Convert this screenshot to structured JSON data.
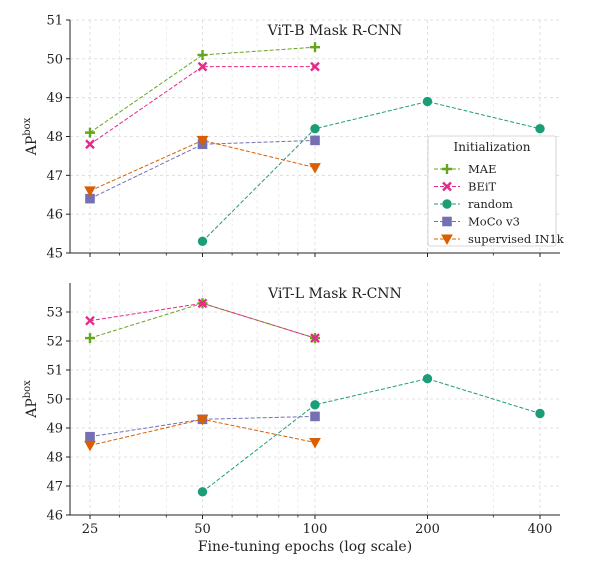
{
  "chart_data": [
    {
      "type": "line",
      "title": "ViT-B Mask R-CNN",
      "ylabel": "AP",
      "ylabel_sup": "box",
      "xscale": "log",
      "xticks": [
        25,
        50,
        100,
        200,
        400
      ],
      "ylim": [
        45,
        51
      ],
      "yticks": [
        45,
        46,
        47,
        48,
        49,
        50,
        51
      ],
      "grid": true,
      "legend": {
        "title": "Initialization",
        "placement": "center-right"
      },
      "series": [
        {
          "name": "MAE",
          "color": "#66a61e",
          "marker": "plus",
          "x": [
            25,
            50,
            100
          ],
          "y": [
            48.1,
            50.1,
            50.3
          ]
        },
        {
          "name": "BEiT",
          "color": "#e7298a",
          "marker": "x",
          "x": [
            25,
            50,
            100
          ],
          "y": [
            47.8,
            49.8,
            49.8
          ]
        },
        {
          "name": "random",
          "color": "#1b9e77",
          "marker": "circle",
          "x": [
            50,
            100,
            200,
            400
          ],
          "y": [
            45.3,
            48.2,
            48.9,
            48.2
          ]
        },
        {
          "name": "MoCo v3",
          "color": "#7570b3",
          "marker": "square",
          "x": [
            25,
            50,
            100
          ],
          "y": [
            46.4,
            47.8,
            47.9
          ]
        },
        {
          "name": "supervised IN1k",
          "color": "#d95f02",
          "marker": "triangle-down",
          "x": [
            25,
            50,
            100
          ],
          "y": [
            46.6,
            47.9,
            47.2
          ]
        }
      ]
    },
    {
      "type": "line",
      "title": "ViT-L Mask R-CNN",
      "ylabel": "AP",
      "ylabel_sup": "box",
      "xlabel": "Fine-tuning epochs (log scale)",
      "xscale": "log",
      "xticks": [
        25,
        50,
        100,
        200,
        400
      ],
      "ylim": [
        46,
        54
      ],
      "yticks": [
        46,
        47,
        48,
        49,
        50,
        51,
        52,
        53
      ],
      "grid": true,
      "series": [
        {
          "name": "MAE",
          "color": "#66a61e",
          "marker": "plus",
          "x": [
            25,
            50,
            100
          ],
          "y": [
            52.1,
            53.3,
            52.1
          ]
        },
        {
          "name": "BEiT",
          "color": "#e7298a",
          "marker": "x",
          "x": [
            25,
            50,
            100
          ],
          "y": [
            52.7,
            53.3,
            52.1
          ]
        },
        {
          "name": "random",
          "color": "#1b9e77",
          "marker": "circle",
          "x": [
            50,
            100,
            200,
            400
          ],
          "y": [
            46.8,
            49.8,
            50.7,
            49.5
          ]
        },
        {
          "name": "MoCo v3",
          "color": "#7570b3",
          "marker": "square",
          "x": [
            25,
            50,
            100
          ],
          "y": [
            48.7,
            49.3,
            49.4
          ]
        },
        {
          "name": "supervised IN1k",
          "color": "#d95f02",
          "marker": "triangle-down",
          "x": [
            25,
            50,
            100
          ],
          "y": [
            48.4,
            49.3,
            48.5
          ]
        }
      ]
    }
  ]
}
